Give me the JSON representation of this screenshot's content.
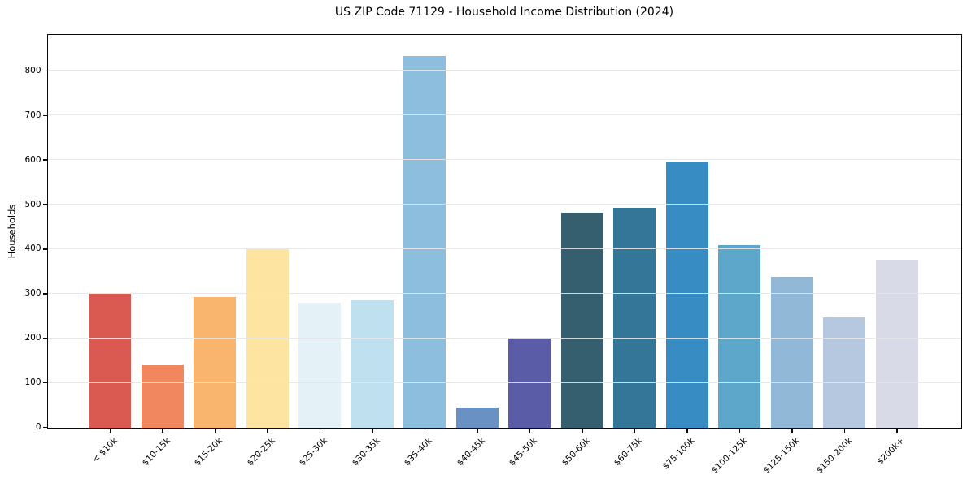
{
  "chart_data": {
    "type": "bar",
    "title": "US ZIP Code 71129 - Household Income Distribution (2024)",
    "xlabel": "",
    "ylabel": "Households",
    "categories": [
      "< $10k",
      "$10-15k",
      "$15-20k",
      "$20-25k",
      "$25-30k",
      "$30-35k",
      "$35-40k",
      "$40-45k",
      "$45-50k",
      "$50-60k",
      "$60-75k",
      "$75-100k",
      "$100-125k",
      "$125-150k",
      "$150-200k",
      "$200k+"
    ],
    "values": [
      300,
      142,
      293,
      400,
      281,
      286,
      835,
      46,
      202,
      483,
      493,
      595,
      410,
      339,
      247,
      377
    ],
    "bar_colors": [
      "#da5a52",
      "#f0875f",
      "#f9b46d",
      "#fde4a1",
      "#e4f1f7",
      "#bfe0ee",
      "#8ebedd",
      "#6a91c4",
      "#5b5ca8",
      "#355f6e",
      "#337698",
      "#378dc3",
      "#5da7ca",
      "#92b8d8",
      "#b5c8e0",
      "#d8dae8"
    ],
    "ylim": [
      0,
      880
    ],
    "yticks": [
      0,
      100,
      200,
      300,
      400,
      500,
      600,
      700,
      800
    ],
    "grid": true,
    "gridline_color": "#e6e6e6",
    "spine_color": "#0a0a0a",
    "text_color": "#000000",
    "legend": null,
    "x_tick_rotation_deg": 45
  }
}
